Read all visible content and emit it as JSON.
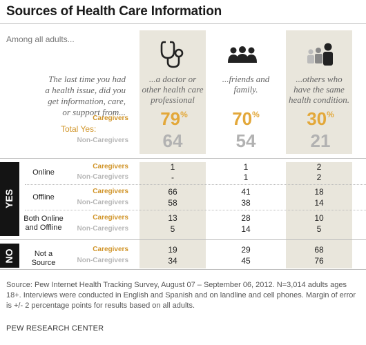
{
  "title": "Sources of Health Care Information",
  "subtitle": "Among all adults...",
  "question": "The last time you had a health issue, did you get information, care, or support from...",
  "columns": [
    {
      "label": "...a doctor or other health care professional",
      "icon": "stethoscope-icon"
    },
    {
      "label": "...friends and family.",
      "icon": "people-group-icon"
    },
    {
      "label": "...others who have the same health condition.",
      "icon": "people-similar-icon"
    }
  ],
  "total_yes_label": "Total Yes:",
  "caregivers_label": "Caregivers",
  "noncaregivers_label": "Non-Caregivers",
  "pct_sign": "%",
  "totals": {
    "caregivers": [
      "79",
      "70",
      "30"
    ],
    "noncaregivers": [
      "64",
      "54",
      "21"
    ]
  },
  "yes_label": "YES",
  "no_label": "NO",
  "rows": [
    {
      "label": "Online",
      "caregivers": [
        "1",
        "1",
        "2"
      ],
      "noncaregivers": [
        "-",
        "1",
        "2"
      ]
    },
    {
      "label": "Offline",
      "caregivers": [
        "66",
        "41",
        "18"
      ],
      "noncaregivers": [
        "58",
        "38",
        "14"
      ]
    },
    {
      "label": "Both Online and Offline",
      "caregivers": [
        "13",
        "28",
        "10"
      ],
      "noncaregivers": [
        "5",
        "14",
        "5"
      ]
    },
    {
      "label": "Not a Source",
      "caregivers": [
        "19",
        "29",
        "68"
      ],
      "noncaregivers": [
        "34",
        "45",
        "76"
      ]
    }
  ],
  "source": "Source: Pew Internet Health Tracking Survey, August 07 – September 06, 2012. N=3,014 adults ages 18+. Interviews were conducted in English and Spanish and on landline and cell phones.  Margin of error is +/- 2 percentage points for results based on all adults.",
  "credit": "PEW RESEARCH CENTER",
  "colors": {
    "caregivers": "#d1952a",
    "noncaregivers": "#b2b2b2",
    "column_bg": "#e9e6dc",
    "side_bar": "#141414"
  },
  "chart_data": {
    "type": "table",
    "title": "Sources of Health Care Information",
    "subtitle": "Among all adults...",
    "categories": [
      "...a doctor or other health care professional",
      "...friends and family.",
      "...others who have the same health condition."
    ],
    "series": [
      {
        "name": "Total Yes: Caregivers",
        "values": [
          79,
          70,
          30
        ]
      },
      {
        "name": "Total Yes: Non-Caregivers",
        "values": [
          64,
          54,
          21
        ]
      },
      {
        "name": "Online: Caregivers",
        "values": [
          1,
          1,
          2
        ]
      },
      {
        "name": "Online: Non-Caregivers",
        "values": [
          null,
          1,
          2
        ]
      },
      {
        "name": "Offline: Caregivers",
        "values": [
          66,
          41,
          18
        ]
      },
      {
        "name": "Offline: Non-Caregivers",
        "values": [
          58,
          38,
          14
        ]
      },
      {
        "name": "Both Online and Offline: Caregivers",
        "values": [
          13,
          28,
          10
        ]
      },
      {
        "name": "Both Online and Offline: Non-Caregivers",
        "values": [
          5,
          14,
          5
        ]
      },
      {
        "name": "Not a Source: Caregivers",
        "values": [
          19,
          29,
          68
        ]
      },
      {
        "name": "Not a Source: Non-Caregivers",
        "values": [
          34,
          45,
          76
        ]
      }
    ]
  }
}
